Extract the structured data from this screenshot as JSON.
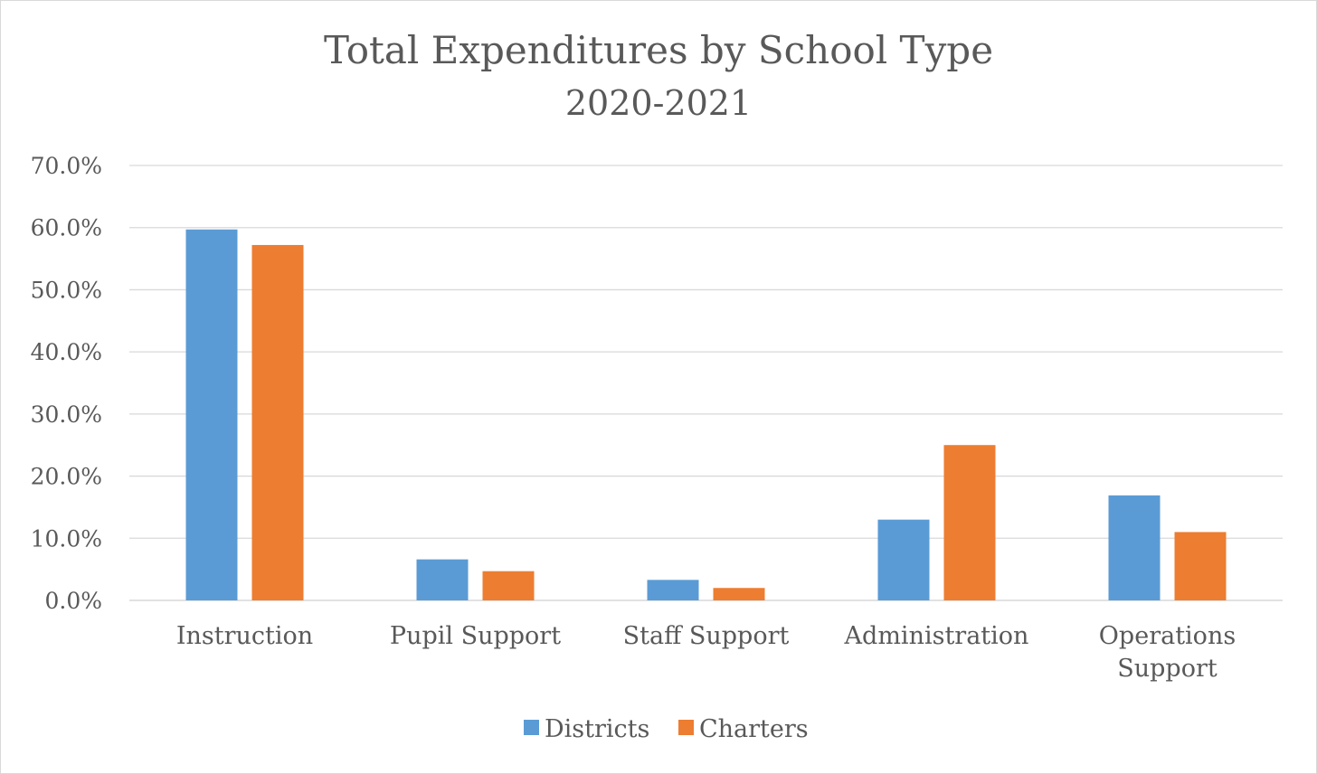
{
  "chart_data": {
    "type": "bar",
    "title": "Total Expenditures by School Type",
    "subtitle": "2020-2021",
    "categories": [
      "Instruction",
      "Pupil Support",
      "Staff Support",
      "Administration",
      "Operations Support"
    ],
    "category_lines": [
      [
        "Instruction"
      ],
      [
        "Pupil Support"
      ],
      [
        "Staff Support"
      ],
      [
        "Administration"
      ],
      [
        "Operations",
        "Support"
      ]
    ],
    "series": [
      {
        "name": "Districts",
        "color": "#5b9bd5",
        "values": [
          59.7,
          6.6,
          3.3,
          13.0,
          16.9
        ]
      },
      {
        "name": "Charters",
        "color": "#ed7d31",
        "values": [
          57.2,
          4.7,
          2.0,
          25.0,
          11.0
        ]
      }
    ],
    "y_ticks": [
      "0.0%",
      "10.0%",
      "20.0%",
      "30.0%",
      "40.0%",
      "50.0%",
      "60.0%",
      "70.0%"
    ],
    "ylim": [
      0,
      70
    ],
    "xlabel": "",
    "ylabel": "",
    "grid": true,
    "legend_position": "bottom",
    "gridline_color": "#d9d9d9"
  }
}
